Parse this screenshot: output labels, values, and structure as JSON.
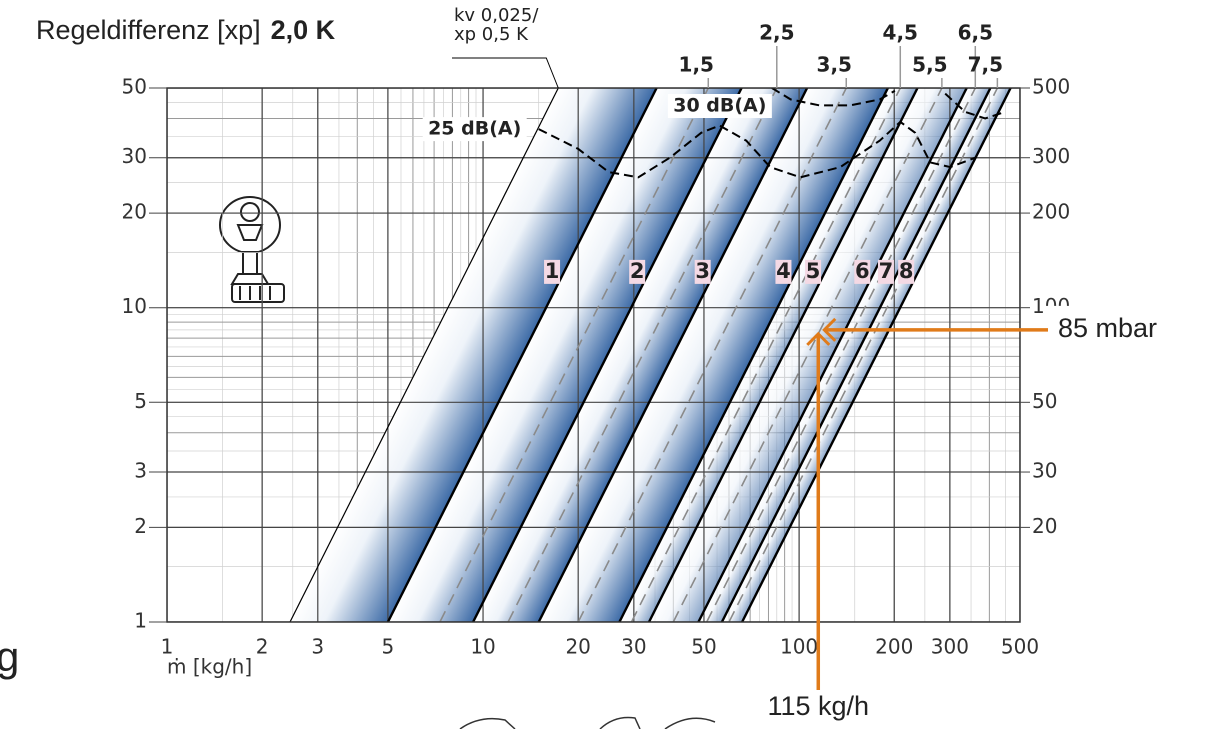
{
  "chart_data": {
    "type": "line",
    "title": "Regeldifferenz [xp]",
    "subtitle": "2,0 K",
    "xlabel": "ṁ [kg/h]",
    "xscale": "log",
    "yscale": "log",
    "xlim": [
      1,
      500
    ],
    "ylim": [
      1,
      50
    ],
    "y2lim": [
      10,
      500
    ],
    "xticks": [
      1,
      2,
      3,
      5,
      10,
      20,
      30,
      50,
      100,
      200,
      300,
      500
    ],
    "yticks": [
      1,
      2,
      3,
      5,
      10,
      20,
      30,
      50
    ],
    "y2ticks": [
      20,
      30,
      50,
      100,
      200,
      300,
      500
    ],
    "grid": true,
    "reference": {
      "label": [
        "kv 0,025/",
        "xp 0,5 K"
      ],
      "color": "#000000",
      "x": [
        2.45,
        17.3
      ],
      "values": [
        1,
        50
      ]
    },
    "series": [
      {
        "name": "1",
        "style": "solid",
        "color": "#000000",
        "x": [
          5,
          35.4
        ],
        "values": [
          1,
          50
        ]
      },
      {
        "name": "2",
        "style": "solid",
        "color": "#000000",
        "x": [
          9.3,
          65.8
        ],
        "values": [
          1,
          50
        ]
      },
      {
        "name": "3",
        "style": "solid",
        "color": "#000000",
        "x": [
          15,
          106
        ],
        "values": [
          1,
          50
        ]
      },
      {
        "name": "4",
        "style": "solid",
        "color": "#000000",
        "x": [
          27,
          191
        ],
        "values": [
          1,
          50
        ]
      },
      {
        "name": "5",
        "style": "solid",
        "color": "#000000",
        "x": [
          33.5,
          237
        ],
        "values": [
          1,
          50
        ]
      },
      {
        "name": "6",
        "style": "solid",
        "color": "#000000",
        "x": [
          48,
          339
        ],
        "values": [
          1,
          50
        ]
      },
      {
        "name": "7",
        "style": "solid",
        "color": "#000000",
        "x": [
          57,
          403
        ],
        "values": [
          1,
          50
        ]
      },
      {
        "name": "8",
        "style": "solid",
        "color": "#000000",
        "x": [
          66,
          467
        ],
        "values": [
          1,
          50
        ]
      },
      {
        "name": "1,5",
        "style": "dashed",
        "color": "#8a8a8a",
        "x": [
          7.3,
          51.6
        ],
        "values": [
          1,
          50
        ]
      },
      {
        "name": "2,5",
        "style": "dashed",
        "color": "#8a8a8a",
        "x": [
          12,
          85
        ],
        "values": [
          1,
          50
        ]
      },
      {
        "name": "3,5",
        "style": "dashed",
        "color": "#8a8a8a",
        "x": [
          20,
          141
        ],
        "values": [
          1,
          50
        ]
      },
      {
        "name": "4,5",
        "style": "dashed",
        "color": "#8a8a8a",
        "x": [
          29.5,
          209
        ],
        "values": [
          1,
          50
        ]
      },
      {
        "name": "5,5",
        "style": "dashed",
        "color": "#8a8a8a",
        "x": [
          40,
          283
        ],
        "values": [
          1,
          50
        ]
      },
      {
        "name": "6,5",
        "style": "dashed",
        "color": "#8a8a8a",
        "x": [
          51,
          361
        ],
        "values": [
          1,
          50
        ]
      },
      {
        "name": "7,5",
        "style": "dashed",
        "color": "#8a8a8a",
        "x": [
          60,
          424
        ],
        "values": [
          1,
          50
        ]
      },
      {
        "name": "25 dB(A)",
        "style": "noise",
        "color": "#000000",
        "x": [
          15,
          20,
          25,
          31,
          39,
          49,
          56,
          68,
          81,
          101,
          135,
          180,
          209,
          233,
          260,
          301,
          361
        ],
        "values": [
          37,
          32,
          27,
          26,
          30,
          36,
          38,
          34,
          28,
          26,
          28,
          34,
          39,
          36,
          29,
          28,
          30
        ]
      },
      {
        "name": "30 dB(A)",
        "style": "noise",
        "color": "#000000",
        "x": [
          82,
          94,
          116,
          145,
          180,
          201,
          null,
          290,
          335,
          388,
          449
        ],
        "values": [
          50,
          46,
          44,
          44,
          46,
          49,
          null,
          48,
          42,
          40,
          42
        ]
      }
    ],
    "markers": [
      {
        "label": "85 mbar",
        "axis": "y2",
        "value": 85,
        "color": "#e07b1a"
      },
      {
        "label": "115 kg/h",
        "axis": "x",
        "value": 115,
        "color": "#e07b1a"
      }
    ],
    "fragments": [
      "g"
    ]
  }
}
